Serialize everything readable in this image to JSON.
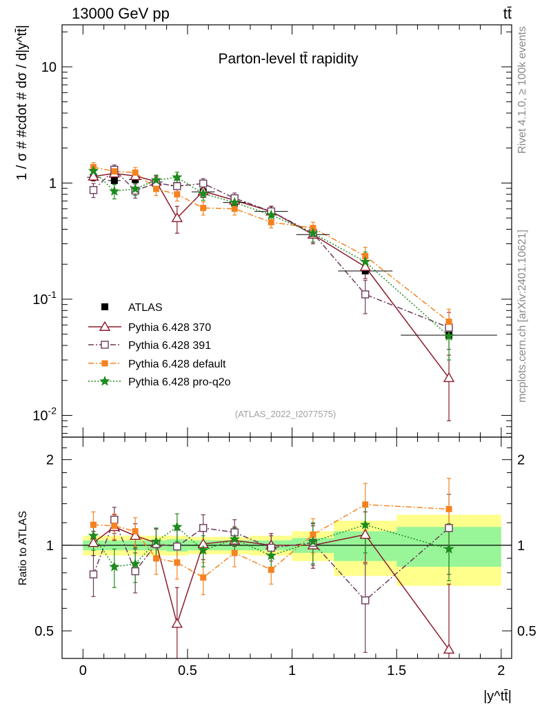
{
  "header": {
    "energy_label": "13000 GeV pp",
    "process_label": "tt̄",
    "side_label_top": "Rivet 4.1.0, ≥ 100k events",
    "side_label_bottom": "mcplots.cern.ch [arXiv:2401.10621]"
  },
  "chart_data": {
    "type": "scatter",
    "title": "Parton-level tt̄ rapidity",
    "watermark": "(ATLAS_2022_I2077575)",
    "xlabel": "|y^tt̄|",
    "ylabel": "1 / σ # #cdot # dσ / d|y^tt̄|",
    "ratio_ylabel": "Ratio to ATLAS",
    "xlim": [
      -0.1,
      2.05
    ],
    "ylim": [
      0.0065,
      23
    ],
    "ratio_ylim": [
      0.4,
      2.4
    ],
    "yscale": "log",
    "x_ticks": [
      "0",
      "0.5",
      "1",
      "1.5",
      "2"
    ],
    "y_ticks": [
      "10",
      "1",
      "10^-1",
      "10^-2"
    ],
    "ratio_ticks": [
      "2",
      "1",
      "0.5"
    ],
    "legend_position": "bottom-left",
    "bin_edges": [
      0,
      0.1,
      0.2,
      0.3,
      0.4,
      0.5,
      0.65,
      0.8,
      1.0,
      1.2,
      1.5,
      2.0
    ],
    "x": [
      0.05,
      0.15,
      0.25,
      0.35,
      0.45,
      0.575,
      0.725,
      0.9,
      1.1,
      1.35,
      1.75
    ],
    "data": {
      "name": "ATLAS",
      "values": [
        1.12,
        1.05,
        1.07,
        1.02,
        0.95,
        0.84,
        0.68,
        0.57,
        0.36,
        0.175,
        0.049
      ],
      "band_inner": [
        0.04,
        0.04,
        0.04,
        0.04,
        0.05,
        0.04,
        0.04,
        0.04,
        0.06,
        0.12,
        0.16
      ],
      "band_outer": [
        0.08,
        0.08,
        0.08,
        0.08,
        0.08,
        0.07,
        0.07,
        0.08,
        0.12,
        0.22,
        0.28
      ]
    },
    "series": [
      {
        "name": "Pythia 6.428 370",
        "color": "#8b1a2b",
        "marker": "open-triangle",
        "line": "solid",
        "values": [
          1.14,
          1.21,
          1.15,
          1.03,
          0.5,
          0.85,
          0.71,
          0.57,
          0.36,
          0.19,
          0.021
        ],
        "errors": [
          0.1,
          0.12,
          0.11,
          0.12,
          0.13,
          0.1,
          0.08,
          0.06,
          0.06,
          0.04,
          0.012
        ],
        "ratio": [
          1.02,
          1.16,
          1.08,
          1.02,
          0.53,
          1.01,
          1.04,
          1.0,
          1.0,
          1.09,
          0.43
        ],
        "ratio_errors": [
          0.1,
          0.12,
          0.11,
          0.12,
          0.18,
          0.12,
          0.12,
          0.1,
          0.17,
          0.22,
          0.3
        ]
      },
      {
        "name": "Pythia 6.428 391",
        "color": "#6b3a5a",
        "marker": "open-square",
        "line": "dashdot",
        "values": [
          0.87,
          1.3,
          0.86,
          1.0,
          0.94,
          0.99,
          0.74,
          0.57,
          0.37,
          0.11,
          0.057
        ],
        "errors": [
          0.12,
          0.13,
          0.12,
          0.12,
          0.12,
          0.1,
          0.08,
          0.06,
          0.06,
          0.035,
          0.02
        ],
        "ratio": [
          0.79,
          1.23,
          0.81,
          1.01,
          0.99,
          1.15,
          1.11,
          0.98,
          1.02,
          0.64,
          1.15
        ],
        "ratio_errors": [
          0.13,
          0.13,
          0.13,
          0.13,
          0.14,
          0.13,
          0.12,
          0.1,
          0.17,
          0.22,
          0.36
        ]
      },
      {
        "name": "Pythia 6.428 default",
        "color": "#f58220",
        "marker": "filled-square",
        "line": "dashdot",
        "values": [
          1.37,
          1.26,
          1.23,
          0.89,
          0.8,
          0.61,
          0.6,
          0.46,
          0.41,
          0.235,
          0.064
        ],
        "errors": [
          0.13,
          0.13,
          0.13,
          0.11,
          0.1,
          0.08,
          0.07,
          0.05,
          0.05,
          0.045,
          0.018
        ],
        "ratio": [
          1.18,
          1.17,
          1.12,
          0.9,
          0.87,
          0.77,
          0.94,
          0.82,
          1.09,
          1.39,
          1.34
        ],
        "ratio_errors": [
          0.13,
          0.12,
          0.13,
          0.11,
          0.11,
          0.1,
          0.1,
          0.09,
          0.15,
          0.26,
          0.38
        ]
      },
      {
        "name": "Pythia 6.428 pro-q2o",
        "color": "#1e8b1e",
        "marker": "star",
        "line": "dotted",
        "values": [
          1.27,
          0.85,
          0.89,
          1.06,
          1.12,
          0.81,
          0.68,
          0.53,
          0.37,
          0.21,
          0.048
        ],
        "errors": [
          0.12,
          0.12,
          0.11,
          0.11,
          0.12,
          0.1,
          0.07,
          0.06,
          0.06,
          0.045,
          0.018
        ],
        "ratio": [
          1.08,
          0.84,
          0.86,
          1.03,
          1.16,
          0.96,
          1.05,
          0.92,
          1.03,
          1.18,
          0.97
        ],
        "ratio_errors": [
          0.12,
          0.13,
          0.12,
          0.12,
          0.13,
          0.12,
          0.1,
          0.1,
          0.17,
          0.24,
          0.22
        ]
      }
    ]
  }
}
